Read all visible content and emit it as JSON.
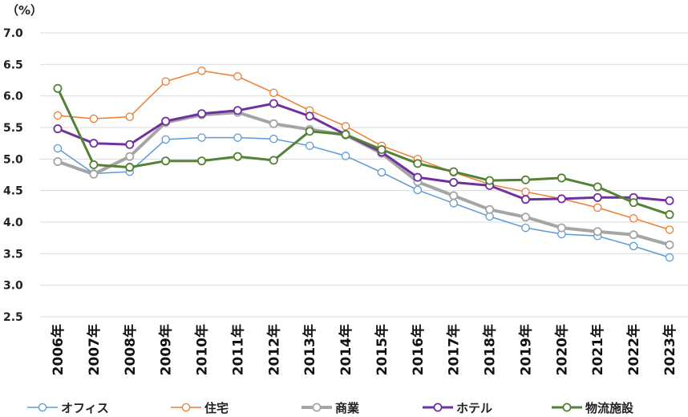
{
  "chart_data": {
    "type": "line",
    "unit_label": "（%）",
    "x": [
      "2006年",
      "2007年",
      "2008年",
      "2009年",
      "2010年",
      "2011年",
      "2012年",
      "2013年",
      "2014年",
      "2015年",
      "2016年",
      "2017年",
      "2018年",
      "2019年",
      "2020年",
      "2021年",
      "2022年",
      "2023年"
    ],
    "ylim": [
      2.5,
      7.0
    ],
    "yticks": [
      "7.0",
      "6.5",
      "6.0",
      "5.5",
      "5.0",
      "4.5",
      "4.0",
      "3.5",
      "3.0",
      "2.5"
    ],
    "grid": true,
    "legend_position": "bottom",
    "series": [
      {
        "name": "オフィス",
        "color": "#5b9bd5",
        "width": 1.5,
        "values": [
          5.17,
          4.77,
          4.8,
          5.31,
          5.34,
          5.34,
          5.32,
          5.21,
          5.05,
          4.79,
          4.51,
          4.3,
          4.09,
          3.91,
          3.81,
          3.78,
          3.62,
          3.44
        ]
      },
      {
        "name": "住宅",
        "color": "#ed7d31",
        "width": 1.5,
        "values": [
          5.69,
          5.64,
          5.67,
          6.23,
          6.4,
          6.31,
          6.05,
          5.77,
          5.52,
          5.21,
          5.0,
          4.79,
          4.6,
          4.48,
          4.37,
          4.23,
          4.06,
          3.88
        ]
      },
      {
        "name": "商業",
        "color": "#a5a5a5",
        "width": 4,
        "values": [
          4.96,
          4.76,
          5.04,
          5.58,
          5.7,
          5.74,
          5.56,
          5.47,
          5.38,
          5.09,
          4.64,
          4.42,
          4.2,
          4.08,
          3.91,
          3.85,
          3.8,
          3.64
        ]
      },
      {
        "name": "ホテル",
        "color": "#7030a0",
        "width": 3,
        "values": [
          5.48,
          5.25,
          5.23,
          5.6,
          5.72,
          5.77,
          5.88,
          5.68,
          5.39,
          5.11,
          4.71,
          4.63,
          4.58,
          4.36,
          4.37,
          4.39,
          4.39,
          4.34
        ]
      },
      {
        "name": "物流施設",
        "color": "#548235",
        "width": 3,
        "values": [
          6.12,
          4.91,
          4.87,
          4.97,
          4.97,
          5.04,
          4.98,
          5.44,
          5.39,
          5.15,
          4.93,
          4.8,
          4.66,
          4.67,
          4.7,
          4.56,
          4.31,
          4.12
        ]
      }
    ]
  }
}
